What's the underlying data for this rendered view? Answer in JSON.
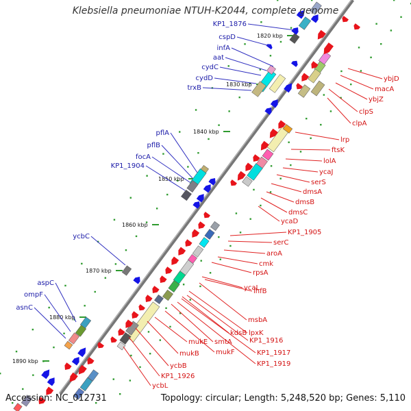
{
  "title": "Klebsiella pneumoniae NTUH-K2044, complete genome",
  "footer": {
    "accession": "Accession: NC_012731",
    "summary": "Topology: circular; Length: 5,248,520 bp; Genes: 5,110"
  },
  "colors": {
    "backbone": "#7a7a7a",
    "forward_strand": "#e8141b",
    "reverse_strand": "#1414e6",
    "left_label": "#1a1aa8",
    "right_label": "#d41212",
    "tick_dot": "#2f9b2f"
  },
  "ruler_labels": [
    "1820 kbp",
    "1830 kbp",
    "1840 kbp",
    "1850 kbp",
    "1860 kbp",
    "1870 kbp",
    "1880 kbp",
    "1890 kbp"
  ],
  "left_labels": [
    "KP1_1876",
    "cspD",
    "infA",
    "aat",
    "cydC",
    "cydD",
    "trxB",
    "pflA",
    "pflB",
    "focA",
    "KP1_1904",
    "ycbC",
    "aspC",
    "ompF",
    "asnC"
  ],
  "right_labels": [
    "ybjD",
    "macA",
    "ybjZ",
    "clpS",
    "clpA",
    "lrp",
    "ftsK",
    "lolA",
    "ycaJ",
    "serS",
    "dmsA",
    "dmsB",
    "dmsC",
    "ycaD",
    "KP1_1905",
    "serC",
    "aroA",
    "cmk",
    "rpsA",
    "ycaL",
    "ihfB",
    "msbA",
    "lpxK",
    "KP1_1916",
    "KP1_1917",
    "KP1_1919",
    "kdsB",
    "smtA",
    "mukF",
    "mukE",
    "mukB",
    "ycbB",
    "KP1_1926",
    "ycbL"
  ]
}
